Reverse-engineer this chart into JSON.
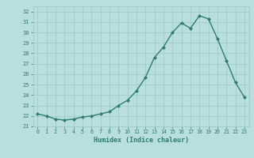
{
  "x": [
    0,
    1,
    2,
    3,
    4,
    5,
    6,
    7,
    8,
    9,
    10,
    11,
    12,
    13,
    14,
    15,
    16,
    17,
    18,
    19,
    20,
    21,
    22,
    23
  ],
  "y": [
    22.2,
    22.0,
    21.7,
    21.6,
    21.7,
    21.9,
    22.0,
    22.2,
    22.4,
    23.0,
    23.5,
    24.4,
    25.7,
    27.6,
    28.6,
    30.0,
    30.9,
    30.4,
    31.6,
    31.3,
    29.4,
    27.3,
    25.2,
    23.8
  ],
  "xlabel": "Humidex (Indice chaleur)",
  "xlim": [
    -0.5,
    23.5
  ],
  "ylim": [
    21.0,
    32.5
  ],
  "yticks": [
    21,
    22,
    23,
    24,
    25,
    26,
    27,
    28,
    29,
    30,
    31,
    32
  ],
  "xticks": [
    0,
    1,
    2,
    3,
    4,
    5,
    6,
    7,
    8,
    9,
    10,
    11,
    12,
    13,
    14,
    15,
    16,
    17,
    18,
    19,
    20,
    21,
    22,
    23
  ],
  "line_color": "#2e7d6e",
  "marker_color": "#2e7d6e",
  "bg_color": "#b8dede",
  "grid_color": "#9ec8c8",
  "tick_label_color": "#2e7d6e",
  "xlabel_color": "#2e7d6e"
}
